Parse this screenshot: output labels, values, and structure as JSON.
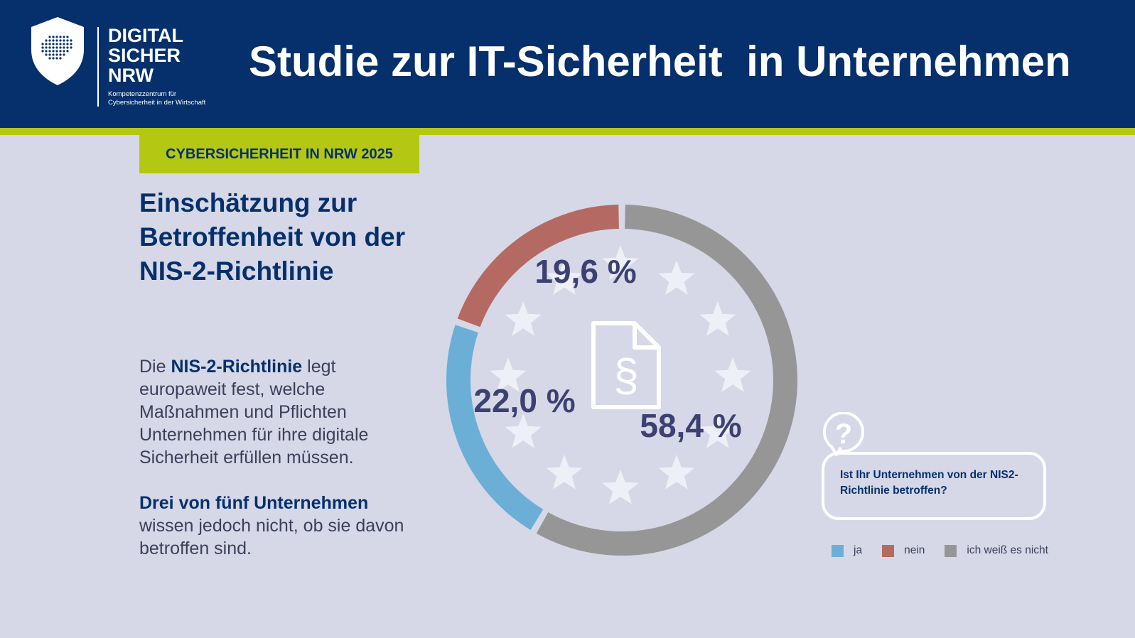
{
  "logo": {
    "line1": "DIGITAL",
    "line2": "SICHER",
    "line3": "NRW",
    "sub1": "Kompetenzzentrum für",
    "sub2": "Cybersicherheit in der Wirtschaft"
  },
  "header": {
    "title": "Studie zur IT-Sicherheit  in Unternehmen"
  },
  "tag": "CYBERSICHERHEIT IN NRW 2025",
  "subtitle": {
    "line1": "Einschätzung zur",
    "line2": "Betroffenheit von der",
    "line3": "NIS-2-Richtlinie"
  },
  "description": {
    "part1": "Die ",
    "bold1": "NIS-2-Richtlinie",
    "part2": " legt europaweit fest, welche Maßnahmen und Pflichten Unternehmen für ihre digitale Sicherheit erfüllen müssen.",
    "bold2": "Drei von fünf Unternehmen",
    "part3": " wissen jedoch nicht, ob sie davon betroffen sind."
  },
  "center_icon": "paragraph-document-icon",
  "question": "Ist Ihr Unternehmen von der NIS2-Richtlinie betroffen?",
  "colors": {
    "header": "#05306b",
    "accent": "#b4c813",
    "background": "#d6d8e7",
    "ja": "#6baed6",
    "nein": "#b46a62",
    "ich_weiss_es_nicht": "#969696",
    "value_text": "#3b4170"
  },
  "chart_data": {
    "type": "pie",
    "variant": "donut",
    "slices": [
      {
        "label": "ja",
        "value": 22.0,
        "display": "22,0 %",
        "color": "#6baed6"
      },
      {
        "label": "nein",
        "value": 19.6,
        "display": "19,6 %",
        "color": "#b46a62"
      },
      {
        "label": "ich weiß es nicht",
        "value": 58.4,
        "display": "58,4 %",
        "color": "#969696"
      }
    ],
    "legend": [
      "ja",
      "nein",
      "ich weiß es nicht"
    ],
    "legend_position": "bottom-right"
  }
}
